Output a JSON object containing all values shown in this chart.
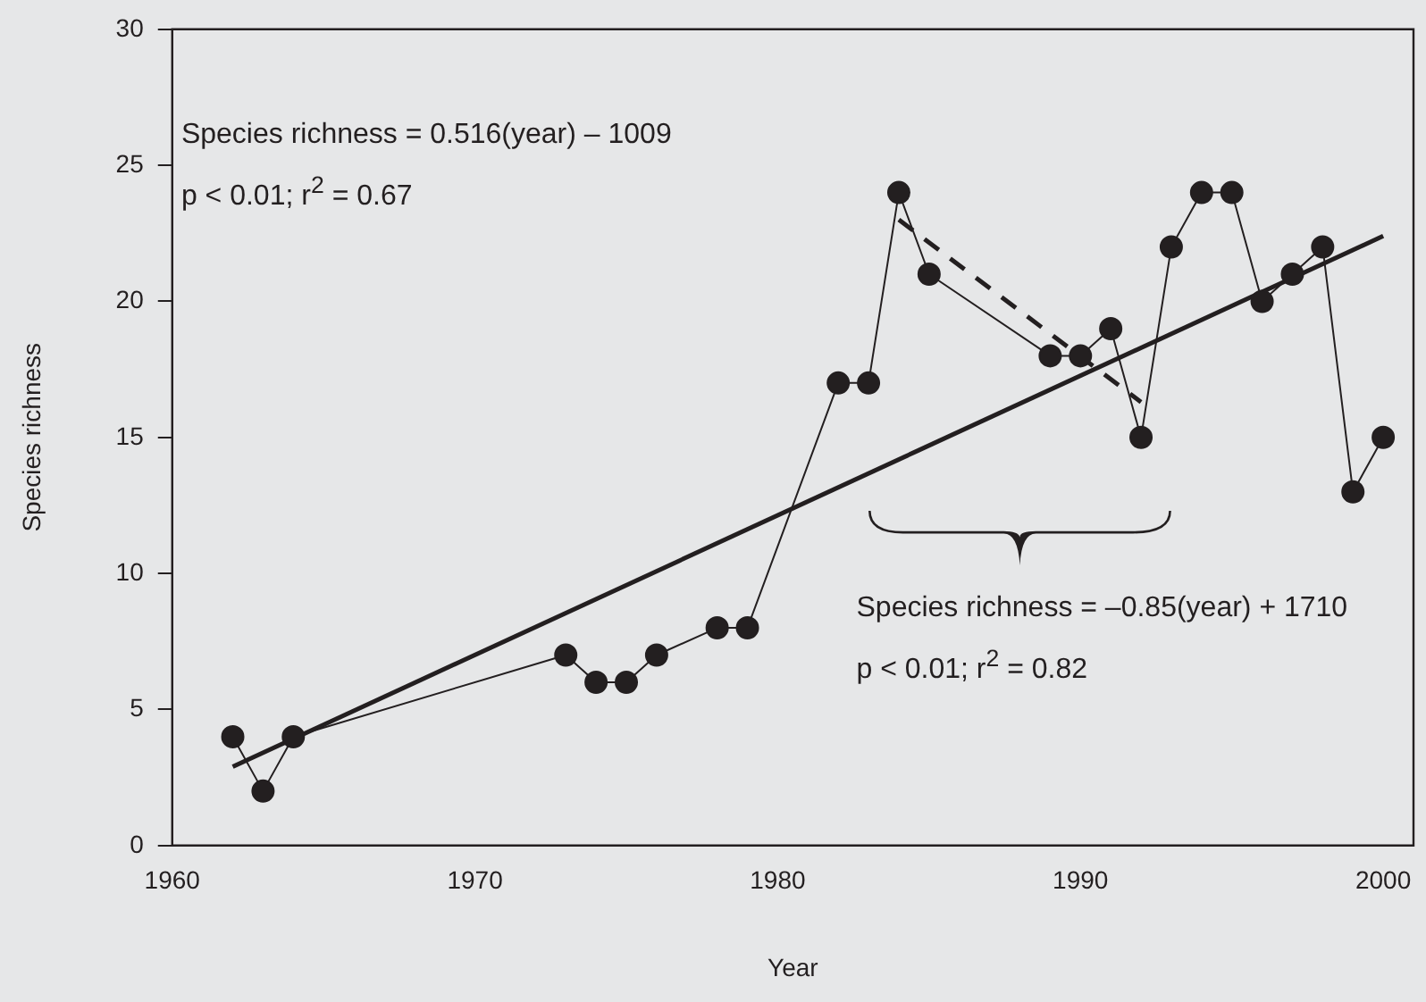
{
  "chart_data": {
    "type": "line",
    "xlabel": "Year",
    "ylabel": "Species richness",
    "xlim": [
      1960,
      2001
    ],
    "xticks": [
      1960,
      1970,
      1980,
      1990,
      2000
    ],
    "ylim": [
      0,
      30
    ],
    "yticks": [
      0,
      5,
      10,
      15,
      20,
      25,
      30
    ],
    "grid": false,
    "legend": false,
    "series": [
      {
        "color": "#231f20",
        "marker": "circle",
        "line_style": "solid",
        "x": [
          1962,
          1963,
          1964,
          1973,
          1974,
          1975,
          1976,
          1978,
          1979,
          1982,
          1983,
          1984,
          1985,
          1989,
          1990,
          1991,
          1992,
          1993,
          1994,
          1995,
          1996,
          1997,
          1998,
          1999,
          2000
        ],
        "values": [
          4,
          2,
          4,
          7,
          6,
          6,
          7,
          8,
          8,
          17,
          17,
          24,
          21,
          18,
          18,
          19,
          15,
          22,
          24,
          24,
          20,
          21,
          22,
          13,
          15
        ]
      },
      {
        "color": "#231f20",
        "marker": "none",
        "line_style": "solid",
        "x": [
          1962,
          2000
        ],
        "values": [
          2.9,
          22.4
        ]
      },
      {
        "color": "#231f20",
        "marker": "none",
        "line_style": "dashed",
        "x": [
          1984,
          1992
        ],
        "values": [
          23,
          16.3
        ]
      }
    ],
    "annotations": [
      "Species richness = 0.516(year) – 1009",
      "p < 0.01; r$^{2}$ = 0.67",
      "Species richness = –0.85(year) + 1710",
      "p < 0.01; r$^{2}$ = 0.82"
    ]
  }
}
